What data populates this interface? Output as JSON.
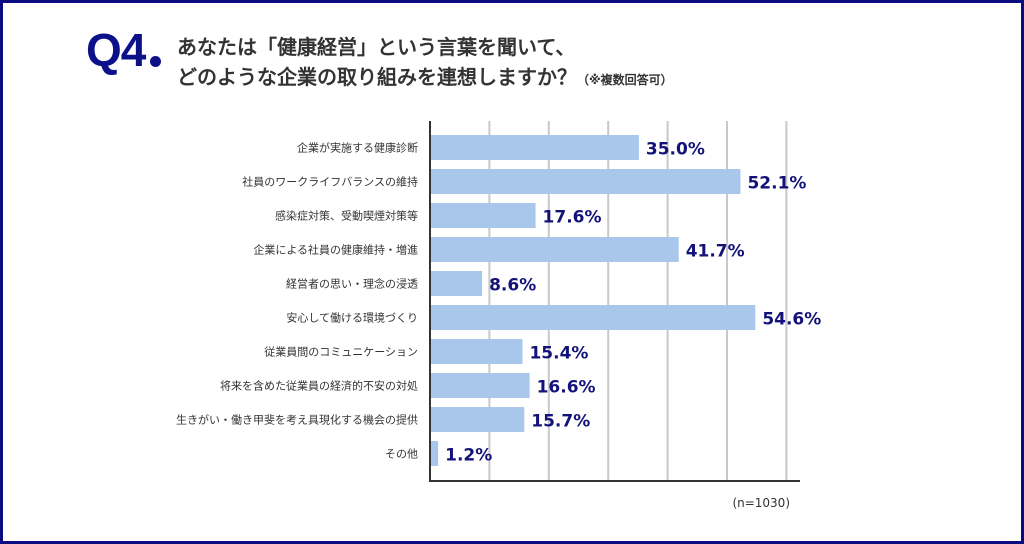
{
  "header": {
    "question_number": "Q4",
    "title_line1": "あなたは「健康経営」という言葉を聞いて、",
    "title_line2": "どのような企業の取り組みを連想しますか？",
    "title_note": "（※複数回答可）"
  },
  "colors": {
    "border": "#0b0b82",
    "bar": "#a9c7ea",
    "value_label": "#121279",
    "axis": "#333333",
    "grid": "#c8c8c8"
  },
  "chart_data": {
    "type": "bar",
    "orientation": "horizontal",
    "title": "あなたは「健康経営」という言葉を聞いて、どのような企業の取り組みを連想しますか？（※複数回答可）",
    "categories": [
      "企業が実施する健康診断",
      "社員のワークライフバランスの維持",
      "感染症対策、受動喫煙対策等",
      "企業による社員の健康維持・増進",
      "経営者の思い・理念の浸透",
      "安心して働ける環境づくり",
      "従業員間のコミュニケーション",
      "将来を含めた従業員の経済的不安の対処",
      "生きがい・働き甲斐を考え具現化する機会の提供",
      "その他"
    ],
    "values": [
      35.0,
      52.1,
      17.6,
      41.7,
      8.6,
      54.6,
      15.4,
      16.6,
      15.7,
      1.2
    ],
    "value_labels": [
      "35.0%",
      "52.1%",
      "17.6%",
      "41.7%",
      "8.6%",
      "54.6%",
      "15.4%",
      "16.6%",
      "15.7%",
      "1.2%"
    ],
    "xlim": [
      0,
      62
    ],
    "gridlines": [
      10,
      20,
      30,
      40,
      50,
      60
    ],
    "grid": true,
    "xlabel": "",
    "ylabel": "",
    "note": "(n=1030)"
  }
}
